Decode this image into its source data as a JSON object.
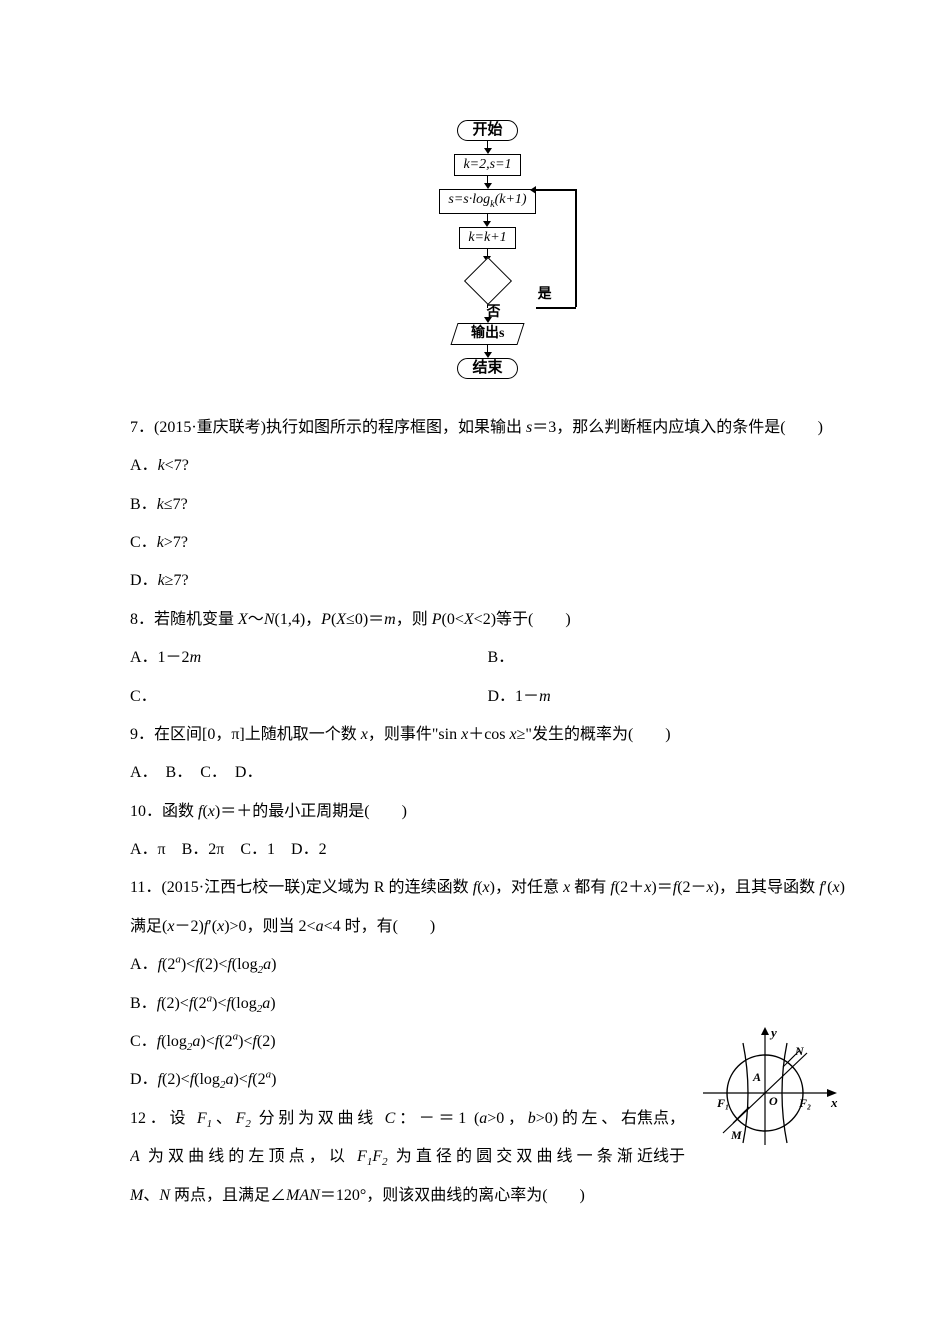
{
  "flowchart": {
    "start": "开始",
    "init": "k=2,s=1",
    "process": "s=s·log<sub>k</sub>(k+1)",
    "increment": "k=k+1",
    "cond_yes": "是",
    "cond_no": "否",
    "output": "输出s",
    "end": "结束"
  },
  "q7": {
    "stem": "7．(2015·重庆联考)执行如图所示的程序框图，如果输出 <span class='ital'>s</span>＝3，那么判断框内应填入的条件是(　　)",
    "optA": "A．<span class='ital'>k</span>&lt;7?",
    "optB": "B．<span class='ital'>k</span>≤7?",
    "optC": "C．<span class='ital'>k</span>&gt;7?",
    "optD": "D．<span class='ital'>k</span>≥7?"
  },
  "q8": {
    "stem": "8．若随机变量 <span class='ital'>X</span>～<span class='ital'>N</span>(1,4)，<span class='ital'>P</span>(<span class='ital'>X</span>≤0)＝<span class='ital'>m</span>，则 <span class='ital'>P</span>(0&lt;<span class='ital'>X</span>&lt;2)等于(　　)",
    "optA": "A．1－2<span class='ital'>m</span>",
    "optB": "B．",
    "optC": "C．",
    "optD": "D．1－<span class='ital'>m</span>"
  },
  "q9": {
    "stem": "9．在区间[0，π]上随机取一个数 <span class='ital'>x</span>，则事件\"sin <span class='ital'>x</span>＋cos <span class='ital'>x</span>≥\"发生的概率为(　　)",
    "opts": "A．　B．　C．　D．"
  },
  "q10": {
    "stem": "10．函数 <span class='ital'>f</span>(<span class='ital'>x</span>)＝＋的最小正周期是(　　)",
    "opts": "A．π　B．2π　C．1　D．2"
  },
  "q11": {
    "stem": "11．(2015·江西七校一联)定义域为 R 的连续函数 <span class='ital'>f</span>(<span class='ital'>x</span>)，对任意 <span class='ital'>x</span> 都有 <span class='ital'>f</span>(2＋<span class='ital'>x</span>)＝<span class='ital'>f</span>(2－<span class='ital'>x</span>)，且其导函数 <span class='ital'>f</span>′(<span class='ital'>x</span>)满足(<span class='ital'>x</span>－2)<span class='ital'>f</span>′(<span class='ital'>x</span>)&gt;0，则当 2&lt;<span class='ital'>a</span>&lt;4 时，有(　　)",
    "optA": "A．<span class='ital'>f</span>(2<span class='sup'>a</span>)&lt;<span class='ital'>f</span>(2)&lt;<span class='ital'>f</span>(log<span class='sub'>2</span><span class='ital'>a</span>)",
    "optB": "B．<span class='ital'>f</span>(2)&lt;<span class='ital'>f</span>(2<span class='sup'>a</span>)&lt;<span class='ital'>f</span>(log<span class='sub'>2</span><span class='ital'>a</span>)",
    "optC": "C．<span class='ital'>f</span>(log<span class='sub'>2</span><span class='ital'>a</span>)&lt;<span class='ital'>f</span>(2<span class='sup'>a</span>)&lt;<span class='ital'>f</span>(2)",
    "optD": "D．<span class='ital'>f</span>(2)&lt;<span class='ital'>f</span>(log<span class='sub'>2</span><span class='ital'>a</span>)&lt;<span class='ital'>f</span>(2<span class='sup'>a</span>)"
  },
  "q12": {
    "stem1": "12．设 <span class='ital'>F</span><span class='sub'>1</span>、<span class='ital'>F</span><span class='sub'>2</span> 分别为双曲线 <span class='ital'>C</span>：－＝1 (<span class='ital'>a</span>&gt;0，<span class='ital'>b</span>&gt;0)的左、右",
    "stem1r": "焦点，",
    "stem2": "<span class='ital'>A</span> 为双曲线的左顶点，以 <span class='ital'>F</span><span class='sub'>1</span><span class='ital'>F</span><span class='sub'>2</span> 为直径的圆交双曲线一条渐近",
    "stem2r": "线于",
    "stem3": "<span class='ital'>M</span>、<span class='ital'>N</span> 两点，且满足∠<span class='ital'>MAN</span>＝120°，则该双曲线的离心率为(　　)",
    "labels": {
      "y": "y",
      "x": "x",
      "O": "O",
      "A": "A",
      "N": "N",
      "M": "M",
      "F1": "F₁",
      "F2": "F₂"
    }
  }
}
